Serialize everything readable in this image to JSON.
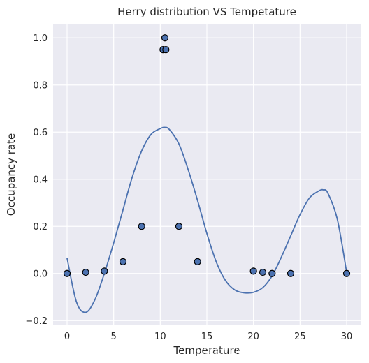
{
  "chart_data": {
    "type": "scatter",
    "title": "Herry distribution VS Tempetature",
    "xlabel": "Temperature",
    "ylabel": "Occupancy rate",
    "xlim": [
      -1.5,
      31.5
    ],
    "ylim": [
      -0.22,
      1.06
    ],
    "xticks": [
      0,
      5,
      10,
      15,
      20,
      25,
      30
    ],
    "yticks": [
      -0.2,
      0.0,
      0.2,
      0.4,
      0.6,
      0.8,
      1.0
    ],
    "x_tick_labels": [
      "0",
      "5",
      "10",
      "15",
      "20",
      "25",
      "30"
    ],
    "y_tick_labels": [
      "−0.2",
      "0.0",
      "0.2",
      "0.4",
      "0.6",
      "0.8",
      "1.0"
    ],
    "grid": true,
    "background_color": "#eaeaf2",
    "line_color": "#4c72b0",
    "marker_color": "#4c72b0",
    "marker_edge_color": "#000000",
    "points": {
      "x": [
        0,
        2,
        4,
        6,
        8,
        10.3,
        10.5,
        10.6,
        12,
        14,
        20,
        21,
        22,
        24,
        30
      ],
      "y": [
        0.0,
        0.005,
        0.01,
        0.05,
        0.2,
        0.95,
        1.0,
        0.95,
        0.2,
        0.05,
        0.01,
        0.005,
        0.0,
        0.0,
        0.0
      ]
    },
    "fit_curve": {
      "x": [
        0,
        1,
        2,
        3,
        4,
        5,
        6,
        7,
        8,
        9,
        10,
        10.5,
        11,
        12,
        13,
        14,
        15,
        16,
        17,
        18,
        19,
        20,
        21,
        22,
        23,
        24,
        25,
        26,
        27,
        27.5,
        28,
        29,
        30
      ],
      "y": [
        0.065,
        -0.12,
        -0.165,
        -0.11,
        0.0,
        0.13,
        0.27,
        0.41,
        0.52,
        0.59,
        0.615,
        0.62,
        0.61,
        0.55,
        0.44,
        0.31,
        0.17,
        0.05,
        -0.03,
        -0.07,
        -0.082,
        -0.08,
        -0.06,
        -0.01,
        0.07,
        0.16,
        0.25,
        0.32,
        0.35,
        0.355,
        0.34,
        0.23,
        0.005
      ]
    }
  },
  "watermark": "https://blog.csdn.net/PRINCE2327"
}
